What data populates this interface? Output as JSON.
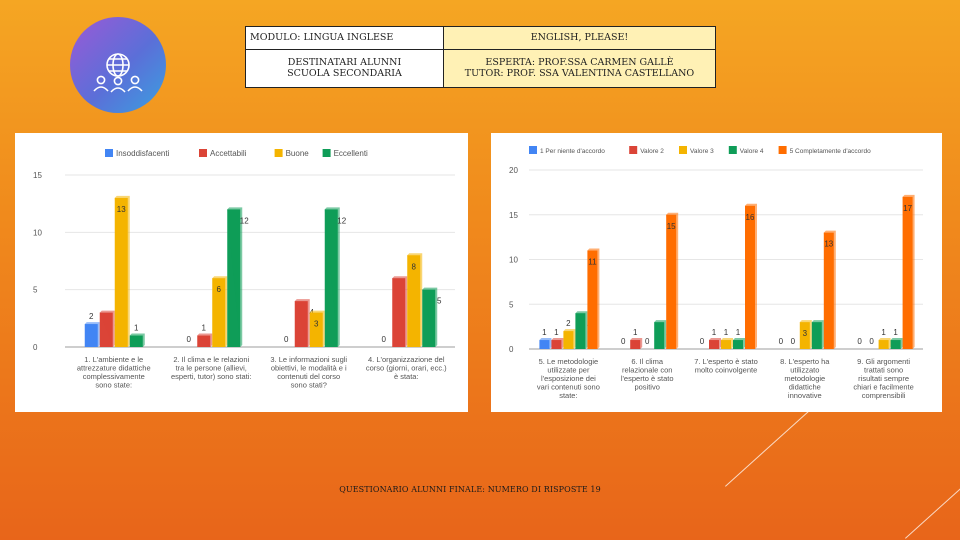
{
  "header": {
    "modulo": "MODULO: LINGUA INGLESE",
    "title": "ENGLISH, PLEASE!",
    "destinatari_1": "DESTINATARI   ALUNNI",
    "destinatari_2": "SCUOLA SECONDARIA",
    "esperta": "ESPERTA: PROF.SSA CARMEN GALLÈ",
    "tutor": "TUTOR: PROF. SSA VALENTINA CASTELLANO"
  },
  "footer": {
    "caption": "QUESTIONARIO ALUNNI FINALE: NUMERO DI RISPOSTE 19"
  },
  "logo": {
    "icon": "globe-people-icon",
    "gradient": [
      "#9b59d6",
      "#3aa0e0"
    ]
  },
  "chart_data": [
    {
      "type": "bar",
      "ylim": [
        0,
        15
      ],
      "yticks": [
        0,
        5,
        10,
        15
      ],
      "legend_position": "top",
      "categories": [
        [
          "1. L'ambiente e le",
          "attrezzature didattiche",
          "complessivamente",
          "sono state:"
        ],
        [
          "2. Il clima e le relazioni",
          "tra le persone (allievi,",
          "esperti, tutor) sono stati:"
        ],
        [
          "3. Le informazioni sugli",
          "obiettivi, le modalità e i",
          "contenuti del corso",
          "sono stati?"
        ],
        [
          "4. L'organizzazione del",
          "corso (giorni, orari, ecc.)",
          "è stata:"
        ]
      ],
      "series": [
        {
          "name": "Insoddisfacenti",
          "color": "#4285f4",
          "values": [
            2,
            0,
            0,
            0
          ]
        },
        {
          "name": "Accettabili",
          "color": "#db4437",
          "values": [
            3,
            1,
            4,
            6
          ]
        },
        {
          "name": "Buone",
          "color": "#f4b400",
          "values": [
            13,
            6,
            3,
            8
          ]
        },
        {
          "name": "Eccellenti",
          "color": "#0f9d58",
          "values": [
            1,
            12,
            12,
            5
          ]
        }
      ]
    },
    {
      "type": "bar",
      "ylim": [
        0,
        20
      ],
      "yticks": [
        0,
        5,
        10,
        15,
        20
      ],
      "legend_position": "top",
      "categories": [
        [
          "5. Le metodologie",
          "utilizzate per",
          "l'esposizione dei",
          "vari contenuti sono",
          "state:"
        ],
        [
          "6. Il clima",
          "relazionale con",
          "l'esperto è stato",
          "positivo"
        ],
        [
          "7. L'esperto è stato",
          "molto coinvolgente"
        ],
        [
          "8. L'esperto ha",
          "utilizzato",
          "metodologie",
          "didattiche",
          "innovative"
        ],
        [
          "9. Gli argomenti",
          "trattati sono",
          "risultati sempre",
          "chiari e facilmente",
          "comprensibili"
        ]
      ],
      "series": [
        {
          "name": "1 Per niente d'accordo",
          "color": "#4285f4",
          "values": [
            1,
            0,
            0,
            0,
            0
          ]
        },
        {
          "name": "Valore 2",
          "color": "#db4437",
          "values": [
            1,
            1,
            1,
            0,
            0
          ]
        },
        {
          "name": "Valore 3",
          "color": "#f4b400",
          "values": [
            2,
            0,
            1,
            3,
            1
          ]
        },
        {
          "name": "Valore 4",
          "color": "#0f9d58",
          "values": [
            4,
            3,
            1,
            3,
            1
          ]
        },
        {
          "name": "5 Completamente d'accordo",
          "color": "#ff6d00",
          "values": [
            11,
            15,
            16,
            13,
            17
          ]
        }
      ]
    }
  ]
}
